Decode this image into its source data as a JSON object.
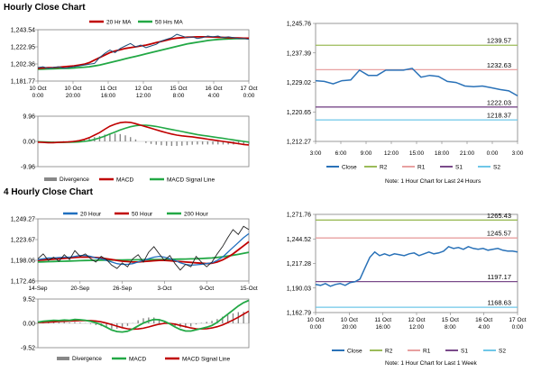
{
  "sections": {
    "hourly_title": "Hourly Close Chart",
    "four_hourly_title": "4 Hourly Close Chart"
  },
  "colors": {
    "price": "#1f4e79",
    "ma_red": "#c00000",
    "ma_green": "#22a845",
    "ma_blue": "#1f6fbf",
    "close_blue": "#2a72b8",
    "r2": "#9bbb59",
    "r1": "#e8a0a0",
    "s1": "#7a4a8a",
    "s2": "#6fc7e8",
    "divergence": "#888888",
    "frame": "#808080"
  },
  "chart_data": [
    {
      "id": "hourly_price",
      "type": "line",
      "title": "Hourly Close Chart",
      "legend": [
        "20 Hr MA",
        "50 Hrs MA"
      ],
      "x_tick_labels": [
        [
          "10 Oct",
          "0:00"
        ],
        [
          "10 Oct",
          "20:00"
        ],
        [
          "11 Oct",
          "16:00"
        ],
        [
          "12 Oct",
          "12:00"
        ],
        [
          "15 Oct",
          "8:00"
        ],
        [
          "16 Oct",
          "4:00"
        ],
        [
          "17 Oct",
          "0:00"
        ]
      ],
      "y_tick_labels": [
        "1,243.54",
        "1,222.95",
        "1,202.36",
        "1,181.77"
      ],
      "ylim": [
        1181.77,
        1243.54
      ],
      "series": [
        {
          "name": "Close",
          "values": [
            1198,
            1199,
            1197,
            1198,
            1199,
            1197,
            1198,
            1199,
            1200,
            1201,
            1202,
            1203,
            1210,
            1215,
            1219,
            1216,
            1221,
            1224,
            1227,
            1223,
            1225,
            1222,
            1224,
            1226,
            1230,
            1232,
            1234,
            1238,
            1236,
            1234,
            1235,
            1233,
            1234,
            1236,
            1235,
            1236,
            1234,
            1235,
            1234,
            1233,
            1233,
            1232
          ]
        },
        {
          "name": "20 Hr MA",
          "values": [
            1197,
            1197.5,
            1197.8,
            1198,
            1198.5,
            1199,
            1199.5,
            1200,
            1201,
            1202,
            1204,
            1207,
            1210,
            1213,
            1216,
            1218,
            1219.5,
            1221,
            1222,
            1223,
            1224,
            1225,
            1226.5,
            1228,
            1229.5,
            1231,
            1232.5,
            1233.5,
            1234,
            1234.5,
            1234.8,
            1235,
            1235,
            1235,
            1234.8,
            1234.5,
            1234.3,
            1234,
            1233.8,
            1233.6,
            1233.4,
            1233.3
          ]
        },
        {
          "name": "50 Hrs MA",
          "values": [
            1196,
            1196.2,
            1196.4,
            1196.6,
            1196.8,
            1197,
            1197.2,
            1197.5,
            1198,
            1198.5,
            1199,
            1200,
            1201,
            1202.5,
            1204,
            1205.5,
            1207,
            1208.5,
            1210,
            1211.5,
            1213,
            1214.5,
            1216,
            1217.5,
            1219,
            1220.5,
            1222,
            1223.5,
            1225,
            1226.5,
            1227.5,
            1228.5,
            1229.5,
            1230.5,
            1231.2,
            1231.8,
            1232.2,
            1232.5,
            1232.7,
            1232.8,
            1232.9,
            1233
          ]
        }
      ]
    },
    {
      "id": "hourly_macd",
      "type": "line",
      "legend": [
        "Divergence",
        "MACD",
        "MACD Signal Line"
      ],
      "y_tick_labels": [
        "9.96",
        "0.00",
        "-9.96"
      ],
      "ylim": [
        -9.96,
        9.96
      ],
      "series": [
        {
          "name": "MACD",
          "values": [
            -0.3,
            -0.4,
            -0.5,
            -0.5,
            -0.4,
            -0.3,
            -0.2,
            0,
            0.3,
            0.8,
            1.5,
            2.5,
            3.5,
            4.8,
            6,
            6.8,
            7.4,
            7.6,
            7.5,
            7,
            6.4,
            5.8,
            5.2,
            4.6,
            4,
            3.4,
            2.9,
            2.5,
            2.2,
            2,
            1.8,
            1.5,
            1.2,
            0.9,
            0.6,
            0.3,
            0,
            -0.3,
            -0.6,
            -0.9,
            -1.2,
            -1.4
          ]
        },
        {
          "name": "MACD Signal Line",
          "values": [
            -0.1,
            -0.2,
            -0.3,
            -0.35,
            -0.4,
            -0.4,
            -0.35,
            -0.3,
            -0.2,
            0,
            0.3,
            0.8,
            1.4,
            2.1,
            2.9,
            3.7,
            4.5,
            5.2,
            5.8,
            6.2,
            6.4,
            6.4,
            6.2,
            5.9,
            5.5,
            5.1,
            4.7,
            4.3,
            3.9,
            3.5,
            3.1,
            2.7,
            2.4,
            2.1,
            1.8,
            1.5,
            1.2,
            0.9,
            0.6,
            0.3,
            0,
            -0.3
          ]
        },
        {
          "name": "Divergence",
          "values": [
            -0.2,
            -0.2,
            -0.2,
            -0.15,
            0,
            0.1,
            0.15,
            0.3,
            0.5,
            0.8,
            1.2,
            1.7,
            2.1,
            2.7,
            3.1,
            3.1,
            2.9,
            2.4,
            1.7,
            0.8,
            0,
            -0.6,
            -1,
            -1.3,
            -1.5,
            -1.7,
            -1.8,
            -1.8,
            -1.7,
            -1.5,
            -1.3,
            -1.2,
            -1.2,
            -1.2,
            -1.2,
            -1.2,
            -1.2,
            -1.2,
            -1.2,
            -1.2,
            -1.2,
            -1.1
          ]
        }
      ]
    },
    {
      "id": "hourly_close_24h",
      "type": "line",
      "y_tick_labels": [
        "1,245.76",
        "1,237.39",
        "1,229.02",
        "1,220.65",
        "1,212.27"
      ],
      "ylim": [
        1212.27,
        1245.76
      ],
      "x_tick_labels": [
        "3:00",
        "6:00",
        "9:00",
        "12:00",
        "15:00",
        "18:00",
        "21:00",
        "0:00",
        "3:00"
      ],
      "levels": [
        {
          "name": "R2",
          "value": 1239.57,
          "label": "1239.57"
        },
        {
          "name": "R1",
          "value": 1232.63,
          "label": "1232.63"
        },
        {
          "name": "S1",
          "value": 1222.03,
          "label": "1222.03"
        },
        {
          "name": "S2",
          "value": 1218.37,
          "label": "1218.37"
        }
      ],
      "series": [
        {
          "name": "Close",
          "values": [
            1229.5,
            1229.3,
            1228.6,
            1229.5,
            1229.7,
            1232.5,
            1231.0,
            1231.0,
            1232.5,
            1232.5,
            1232.5,
            1233.0,
            1230.5,
            1231.0,
            1230.7,
            1229.3,
            1229.0,
            1228.0,
            1227.8,
            1228.0,
            1227.5,
            1227.0,
            1226.6,
            1225.2
          ]
        }
      ],
      "legend": [
        "Close",
        "R2",
        "R1",
        "S1",
        "S2"
      ],
      "note": "Note: 1 Hour Chart for Last 24 Hours"
    },
    {
      "id": "four_hourly_price",
      "type": "line",
      "title": "4 Hourly Close Chart",
      "legend": [
        "20 Hour",
        "50 Hour",
        "200 Hour"
      ],
      "x_tick_labels": [
        "14-Sep",
        "20-Sep",
        "26-Sep",
        "3-Oct",
        "9-Oct",
        "15-Oct"
      ],
      "y_tick_labels": [
        "1,249.27",
        "1,223.67",
        "1,198.06",
        "1,172.46"
      ],
      "ylim": [
        1172.46,
        1249.27
      ],
      "series": [
        {
          "name": "Close",
          "values": [
            1200,
            1206,
            1198,
            1202,
            1197,
            1205,
            1199,
            1210,
            1203,
            1206,
            1200,
            1196,
            1203,
            1199,
            1192,
            1188,
            1195,
            1190,
            1200,
            1205,
            1196,
            1208,
            1215,
            1206,
            1198,
            1204,
            1194,
            1186,
            1193,
            1190,
            1203,
            1196,
            1190,
            1196,
            1206,
            1215,
            1226,
            1236,
            1230,
            1240,
            1236
          ]
        },
        {
          "name": "20 Hour",
          "values": [
            1199,
            1200,
            1201,
            1201,
            1201.5,
            1202,
            1202,
            1203,
            1204,
            1204,
            1203,
            1201,
            1200,
            1198,
            1196,
            1194,
            1193,
            1193,
            1194,
            1196,
            1198,
            1200,
            1202,
            1203,
            1202,
            1200,
            1198,
            1195,
            1193,
            1192,
            1192.5,
            1193,
            1194,
            1195,
            1198,
            1202,
            1208,
            1214,
            1220,
            1226,
            1231
          ]
        },
        {
          "name": "50 Hour",
          "values": [
            1198,
            1198.5,
            1199,
            1199.5,
            1200,
            1200.5,
            1201,
            1201.5,
            1202,
            1202,
            1202,
            1201.5,
            1201,
            1200,
            1199,
            1198,
            1197,
            1196.5,
            1196,
            1196,
            1196.5,
            1197,
            1197.5,
            1198,
            1198,
            1197.5,
            1197,
            1196.5,
            1196,
            1195.5,
            1195,
            1194.5,
            1194,
            1194.5,
            1196,
            1198.5,
            1202,
            1206,
            1211,
            1216,
            1221
          ]
        },
        {
          "name": "200 Hour",
          "values": [
            1196,
            1196.2,
            1196.4,
            1196.6,
            1196.8,
            1197,
            1197.2,
            1197.4,
            1197.6,
            1197.8,
            1198,
            1198.1,
            1198.2,
            1198.3,
            1198.4,
            1198.5,
            1198.5,
            1198.6,
            1198.6,
            1198.7,
            1198.8,
            1198.9,
            1199,
            1199.1,
            1199.2,
            1199.3,
            1199.4,
            1199.5,
            1199.6,
            1199.8,
            1200,
            1200.3,
            1200.6,
            1201,
            1201.6,
            1202.4,
            1203.3,
            1204.3,
            1205.4,
            1206.6,
            1208
          ]
        }
      ]
    },
    {
      "id": "four_hourly_macd",
      "type": "line",
      "legend": [
        "Divergence",
        "MACD",
        "MACD Signal Line"
      ],
      "y_tick_labels": [
        "9.52",
        "0.00",
        "-9.52"
      ],
      "ylim": [
        -9.52,
        9.52
      ],
      "series": [
        {
          "name": "MACD",
          "values": [
            0.5,
            0.8,
            1,
            1.2,
            1.1,
            1.3,
            1.2,
            1.5,
            1.4,
            1.2,
            0.8,
            0.2,
            -0.5,
            -1.5,
            -2.6,
            -3.2,
            -3.4,
            -3.1,
            -2.2,
            -1,
            0.1,
            0.9,
            1.5,
            1.4,
            0.8,
            -0.2,
            -1.4,
            -2.4,
            -3,
            -3,
            -2.5,
            -2,
            -1.5,
            -0.8,
            0.4,
            2,
            3.6,
            5.2,
            6.8,
            8.1,
            9
          ]
        },
        {
          "name": "MACD Signal Line",
          "values": [
            0.3,
            0.4,
            0.5,
            0.6,
            0.7,
            0.8,
            0.9,
            1,
            1.1,
            1.1,
            1.1,
            0.9,
            0.6,
            0.1,
            -0.5,
            -1.1,
            -1.7,
            -2.1,
            -2.3,
            -2.2,
            -1.9,
            -1.4,
            -0.8,
            -0.3,
            0,
            0,
            -0.3,
            -0.8,
            -1.3,
            -1.8,
            -2.1,
            -2.2,
            -2.1,
            -1.8,
            -1.3,
            -0.6,
            0.3,
            1.3,
            2.4,
            3.6,
            4.8
          ]
        },
        {
          "name": "Divergence",
          "values": [
            0.2,
            0.4,
            0.5,
            0.6,
            0.4,
            0.5,
            0.3,
            0.5,
            0.3,
            0.1,
            -0.3,
            -0.7,
            -1.1,
            -1.6,
            -2.1,
            -2.1,
            -1.7,
            -1,
            0.1,
            1.2,
            2,
            2.3,
            2.3,
            1.7,
            0.8,
            -0.2,
            -1.1,
            -1.6,
            -1.7,
            -1.2,
            -0.4,
            0.2,
            0.6,
            1,
            1.7,
            2.6,
            3.3,
            3.9,
            4.4,
            4.5,
            4.2
          ]
        }
      ]
    },
    {
      "id": "four_hourly_week",
      "type": "line",
      "y_tick_labels": [
        "1,271.76",
        "1,244.52",
        "1,217.28",
        "1,190.03",
        "1,162.79"
      ],
      "ylim": [
        1162.79,
        1271.76
      ],
      "x_tick_labels": [
        [
          "10 Oct",
          "0:00"
        ],
        [
          "10 Oct",
          "20:00"
        ],
        [
          "11 Oct",
          "16:00"
        ],
        [
          "12 Oct",
          "12:00"
        ],
        [
          "15 Oct",
          "8:00"
        ],
        [
          "16 Oct",
          "4:00"
        ],
        [
          "17 Oct",
          "0:00"
        ]
      ],
      "levels": [
        {
          "name": "R2",
          "value": 1265.43,
          "label": "1265.43"
        },
        {
          "name": "R1",
          "value": 1245.57,
          "label": "1245.57"
        },
        {
          "name": "S1",
          "value": 1197.17,
          "label": "1197.17"
        },
        {
          "name": "S2",
          "value": 1168.63,
          "label": "1168.63"
        }
      ],
      "series": [
        {
          "name": "Close",
          "values": [
            1194,
            1193,
            1195,
            1192,
            1194,
            1195,
            1193,
            1196,
            1197,
            1200,
            1212,
            1224,
            1230,
            1226,
            1228,
            1226,
            1228,
            1227,
            1226,
            1228,
            1229,
            1226,
            1228,
            1230,
            1228,
            1229,
            1231,
            1236,
            1234,
            1235,
            1233,
            1236,
            1234,
            1233,
            1234,
            1232,
            1233,
            1234,
            1232,
            1231,
            1231,
            1230
          ]
        }
      ],
      "legend": [
        "Close",
        "R2",
        "R1",
        "S1",
        "S2"
      ],
      "note": "Note: 1 Hour Chart for Last 1 Week"
    }
  ]
}
